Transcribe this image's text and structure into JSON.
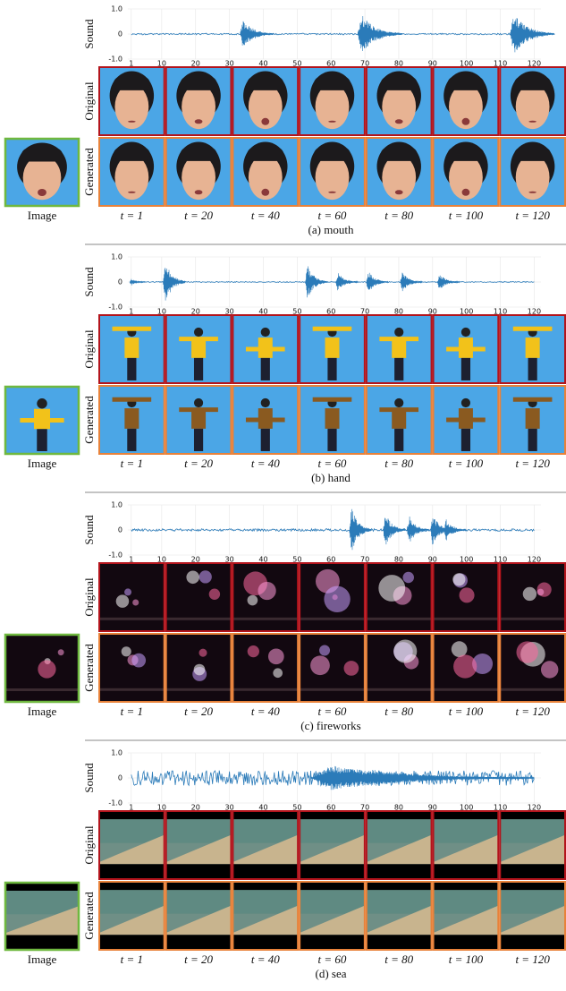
{
  "figure": {
    "sound_label": "Sound",
    "row_labels": [
      "Original",
      "Generated"
    ],
    "image_label": "Image",
    "time_labels": [
      "t = 1",
      "t = 20",
      "t = 40",
      "t = 60",
      "t = 80",
      "t = 100",
      "t = 120"
    ],
    "panels": [
      {
        "caption": "(a) mouth",
        "background": "#4ba6e6",
        "sound": {
          "xlim": [
            0,
            122
          ],
          "ylim": [
            -1,
            1
          ],
          "grid": true,
          "color": "#2b7bb9",
          "xticks": [
            1,
            10,
            20,
            30,
            40,
            50,
            60,
            70,
            80,
            90,
            100,
            110,
            120
          ],
          "yticks": [
            {
              "value": 1,
              "label": "1.0"
            },
            0,
            {
              "value": -1,
              "label": "-1.0"
            }
          ],
          "noise": 0.03,
          "bursts": [
            {
              "x": 34,
              "amp": 0.6,
              "width": 3
            },
            {
              "x": 69,
              "amp": 0.8,
              "width": 4
            },
            {
              "x": 114,
              "amp": 0.85,
              "width": 4
            }
          ]
        }
      },
      {
        "caption": "(b) hand",
        "background": "#4ba6e6",
        "sound": {
          "xlim": [
            0,
            122
          ],
          "ylim": [
            -1,
            1
          ],
          "grid": true,
          "color": "#2b7bb9",
          "xticks": [
            1,
            10,
            20,
            30,
            40,
            50,
            60,
            70,
            80,
            90,
            100,
            110,
            120
          ],
          "yticks": [
            {
              "value": 1,
              "label": "1.0"
            },
            0,
            {
              "value": -1,
              "label": "-1.0"
            }
          ],
          "noise": 0.02,
          "bursts": [
            {
              "x": 1,
              "amp": 0.15,
              "width": 1.5
            },
            {
              "x": 11,
              "amp": 0.9,
              "width": 2
            },
            {
              "x": 53,
              "amp": 0.7,
              "width": 2
            },
            {
              "x": 62,
              "amp": 0.4,
              "width": 2
            },
            {
              "x": 71,
              "amp": 0.45,
              "width": 2
            },
            {
              "x": 81,
              "amp": 0.4,
              "width": 2
            },
            {
              "x": 92,
              "amp": 0.35,
              "width": 2
            }
          ]
        }
      },
      {
        "caption": "(c) fireworks",
        "background": "#120810",
        "sound": {
          "xlim": [
            0,
            122
          ],
          "ylim": [
            -1,
            1
          ],
          "grid": true,
          "color": "#2b7bb9",
          "xticks": [
            1,
            10,
            20,
            30,
            40,
            50,
            60,
            70,
            80,
            90,
            100,
            110,
            120
          ],
          "yticks": [
            {
              "value": 1,
              "label": "1.0"
            },
            0,
            {
              "value": -1,
              "label": "-1.0"
            }
          ],
          "noise": 0.05,
          "bursts": [
            {
              "x": 66,
              "amp": 0.95,
              "width": 2
            },
            {
              "x": 76,
              "amp": 0.7,
              "width": 2
            },
            {
              "x": 83,
              "amp": 0.6,
              "width": 2
            },
            {
              "x": 90,
              "amp": 0.65,
              "width": 2
            },
            {
              "x": 94,
              "amp": 0.45,
              "width": 2
            }
          ]
        }
      },
      {
        "caption": "(d) sea",
        "background": "#6f8f86",
        "sound": {
          "xlim": [
            0,
            122
          ],
          "ylim": [
            -1,
            1
          ],
          "grid": true,
          "color": "#2b7bb9",
          "xticks": [
            1,
            10,
            20,
            30,
            40,
            50,
            60,
            70,
            80,
            90,
            100,
            110,
            120
          ],
          "yticks": [
            {
              "value": 1,
              "label": "1.0"
            },
            0,
            {
              "value": -1,
              "label": "-1.0"
            }
          ],
          "noise": 0.3,
          "bursts": [
            {
              "x": 60,
              "amp": 0.5,
              "width": 20
            },
            {
              "x": 72,
              "amp": 0.35,
              "width": 15
            }
          ]
        }
      }
    ]
  }
}
